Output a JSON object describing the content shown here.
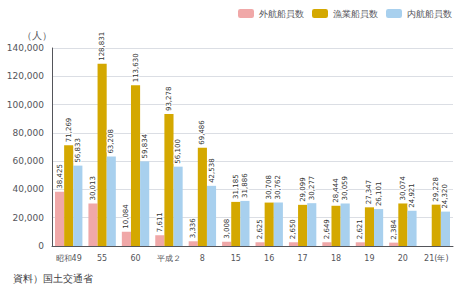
{
  "chart_data": {
    "type": "bar",
    "categories": [
      "昭和49",
      "55",
      "60",
      "平成２",
      "8",
      "15",
      "16",
      "17",
      "18",
      "19",
      "20",
      "21(年)"
    ],
    "series": [
      {
        "name": "外航船員数",
        "color": "#f0a8a8",
        "values": [
          38425,
          30013,
          10084,
          7611,
          3336,
          3008,
          2625,
          2650,
          2649,
          2621,
          2384,
          0
        ],
        "value_labels": [
          "38,425",
          "30,013",
          "10,084",
          "7,611",
          "3,336",
          "3,008",
          "2,625",
          "2,650",
          "2,649",
          "2,621",
          "2,384",
          null
        ]
      },
      {
        "name": "漁業船員数",
        "color": "#d4a800",
        "values": [
          71269,
          128831,
          113630,
          93278,
          69486,
          31185,
          30708,
          29099,
          28444,
          27347,
          30074,
          29228
        ],
        "value_labels": [
          "71,269",
          "128,831",
          "113,630",
          "93,278",
          "69,486",
          "31,185",
          "30,708",
          "29,099",
          "28,444",
          "27,347",
          "30,074",
          "29,228"
        ]
      },
      {
        "name": "内航船員数",
        "color": "#a8d0ee",
        "values": [
          56833,
          63208,
          59834,
          56100,
          42538,
          31886,
          30762,
          30277,
          30059,
          26101,
          24921,
          24320
        ],
        "value_labels": [
          "56,833",
          "63,208",
          "59,834",
          "56,100",
          "42,538",
          "31,886",
          "30,762",
          "30,277",
          "30,059",
          "26,101",
          "24,921",
          "24,320"
        ]
      }
    ],
    "y_label": "（人）",
    "annotation": "資料）国土交通省",
    "ylim": [
      0,
      140000
    ],
    "yticks": [
      0,
      {
        "value": 20000,
        "label": "20,000"
      },
      {
        "value": 40000,
        "label": "40,000"
      },
      {
        "value": 60000,
        "label": "60,000"
      },
      {
        "value": 80000,
        "label": "80,000"
      },
      {
        "value": 100000,
        "label": "100,000"
      },
      {
        "value": 120000,
        "label": "120,000"
      },
      {
        "value": 140000,
        "label": "140,000"
      }
    ],
    "grid": true,
    "legend": "upper right",
    "data_labels": true
  }
}
